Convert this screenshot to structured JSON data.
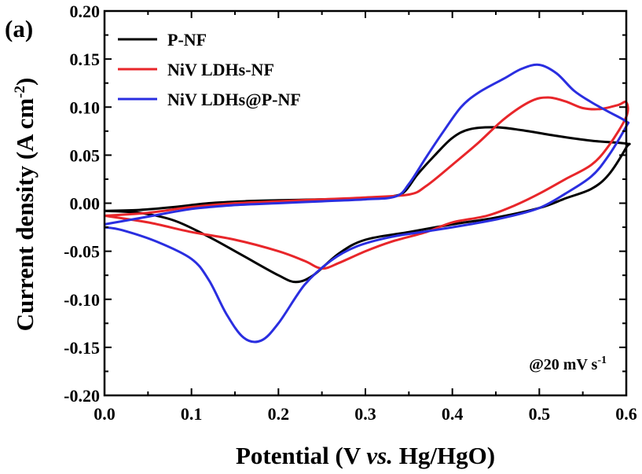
{
  "chart_data": {
    "type": "line",
    "panel_label": "(a)",
    "xlabel_parts": [
      "Potential (V ",
      "vs.",
      " Hg/HgO)"
    ],
    "ylabel_parts": [
      "Current density (A cm",
      "-2",
      ")"
    ],
    "annotation_parts": [
      "@20 mV s",
      "-1"
    ],
    "xlim": [
      0.0,
      0.6
    ],
    "ylim": [
      -0.2,
      0.2
    ],
    "xticks": [
      0.0,
      0.1,
      0.2,
      0.3,
      0.4,
      0.5,
      0.6
    ],
    "yticks": [
      -0.2,
      -0.15,
      -0.1,
      -0.05,
      0.0,
      0.05,
      0.1,
      0.15,
      0.2
    ],
    "xtick_labels": [
      "0.0",
      "0.1",
      "0.2",
      "0.3",
      "0.4",
      "0.5",
      "0.6"
    ],
    "ytick_labels": [
      "-0.20",
      "-0.15",
      "-0.10",
      "-0.05",
      "0.00",
      "0.05",
      "0.10",
      "0.15",
      "0.20"
    ],
    "grid": false,
    "legend_position": "top-left",
    "series": [
      {
        "name": "P-NF",
        "color": "#000000",
        "points": [
          [
            0.0,
            -0.008
          ],
          [
            0.04,
            -0.007
          ],
          [
            0.08,
            -0.004
          ],
          [
            0.12,
            0.0
          ],
          [
            0.16,
            0.002
          ],
          [
            0.2,
            0.003
          ],
          [
            0.25,
            0.004
          ],
          [
            0.3,
            0.005
          ],
          [
            0.33,
            0.007
          ],
          [
            0.345,
            0.012
          ],
          [
            0.36,
            0.03
          ],
          [
            0.38,
            0.05
          ],
          [
            0.4,
            0.068
          ],
          [
            0.42,
            0.077
          ],
          [
            0.45,
            0.079
          ],
          [
            0.48,
            0.076
          ],
          [
            0.52,
            0.07
          ],
          [
            0.56,
            0.065
          ],
          [
            0.6,
            0.062
          ],
          [
            0.6,
            0.058
          ],
          [
            0.58,
            0.03
          ],
          [
            0.56,
            0.015
          ],
          [
            0.53,
            0.005
          ],
          [
            0.5,
            -0.005
          ],
          [
            0.45,
            -0.015
          ],
          [
            0.4,
            -0.022
          ],
          [
            0.35,
            -0.03
          ],
          [
            0.3,
            -0.038
          ],
          [
            0.27,
            -0.052
          ],
          [
            0.24,
            -0.075
          ],
          [
            0.22,
            -0.082
          ],
          [
            0.2,
            -0.075
          ],
          [
            0.16,
            -0.055
          ],
          [
            0.12,
            -0.035
          ],
          [
            0.08,
            -0.018
          ],
          [
            0.04,
            -0.01
          ],
          [
            0.0,
            -0.008
          ]
        ]
      },
      {
        "name": "NiV LDHs-NF",
        "color": "#e8262a",
        "points": [
          [
            0.0,
            -0.013
          ],
          [
            0.05,
            -0.01
          ],
          [
            0.1,
            -0.004
          ],
          [
            0.15,
            0.0
          ],
          [
            0.2,
            0.002
          ],
          [
            0.25,
            0.004
          ],
          [
            0.3,
            0.006
          ],
          [
            0.35,
            0.009
          ],
          [
            0.37,
            0.018
          ],
          [
            0.4,
            0.04
          ],
          [
            0.43,
            0.063
          ],
          [
            0.46,
            0.088
          ],
          [
            0.49,
            0.106
          ],
          [
            0.51,
            0.11
          ],
          [
            0.53,
            0.106
          ],
          [
            0.55,
            0.099
          ],
          [
            0.57,
            0.098
          ],
          [
            0.59,
            0.102
          ],
          [
            0.6,
            0.105
          ],
          [
            0.6,
            0.09
          ],
          [
            0.58,
            0.06
          ],
          [
            0.56,
            0.04
          ],
          [
            0.53,
            0.025
          ],
          [
            0.5,
            0.01
          ],
          [
            0.47,
            -0.003
          ],
          [
            0.44,
            -0.013
          ],
          [
            0.4,
            -0.02
          ],
          [
            0.37,
            -0.03
          ],
          [
            0.33,
            -0.04
          ],
          [
            0.3,
            -0.05
          ],
          [
            0.27,
            -0.062
          ],
          [
            0.25,
            -0.068
          ],
          [
            0.23,
            -0.06
          ],
          [
            0.2,
            -0.05
          ],
          [
            0.15,
            -0.038
          ],
          [
            0.1,
            -0.03
          ],
          [
            0.05,
            -0.02
          ],
          [
            0.0,
            -0.013
          ]
        ]
      },
      {
        "name": "NiV LDHs@P-NF",
        "color": "#2a2ee0",
        "points": [
          [
            0.0,
            -0.022
          ],
          [
            0.05,
            -0.014
          ],
          [
            0.1,
            -0.006
          ],
          [
            0.15,
            -0.002
          ],
          [
            0.2,
            0.0
          ],
          [
            0.25,
            0.002
          ],
          [
            0.3,
            0.004
          ],
          [
            0.335,
            0.007
          ],
          [
            0.35,
            0.02
          ],
          [
            0.37,
            0.048
          ],
          [
            0.39,
            0.075
          ],
          [
            0.41,
            0.1
          ],
          [
            0.43,
            0.115
          ],
          [
            0.46,
            0.13
          ],
          [
            0.48,
            0.14
          ],
          [
            0.5,
            0.144
          ],
          [
            0.52,
            0.135
          ],
          [
            0.54,
            0.117
          ],
          [
            0.56,
            0.105
          ],
          [
            0.58,
            0.095
          ],
          [
            0.6,
            0.085
          ],
          [
            0.6,
            0.08
          ],
          [
            0.58,
            0.05
          ],
          [
            0.56,
            0.028
          ],
          [
            0.53,
            0.01
          ],
          [
            0.5,
            -0.005
          ],
          [
            0.46,
            -0.015
          ],
          [
            0.42,
            -0.022
          ],
          [
            0.38,
            -0.028
          ],
          [
            0.33,
            -0.035
          ],
          [
            0.29,
            -0.045
          ],
          [
            0.26,
            -0.06
          ],
          [
            0.23,
            -0.085
          ],
          [
            0.2,
            -0.125
          ],
          [
            0.18,
            -0.143
          ],
          [
            0.16,
            -0.14
          ],
          [
            0.14,
            -0.115
          ],
          [
            0.12,
            -0.08
          ],
          [
            0.1,
            -0.058
          ],
          [
            0.06,
            -0.04
          ],
          [
            0.02,
            -0.028
          ],
          [
            0.0,
            -0.025
          ]
        ]
      }
    ]
  }
}
